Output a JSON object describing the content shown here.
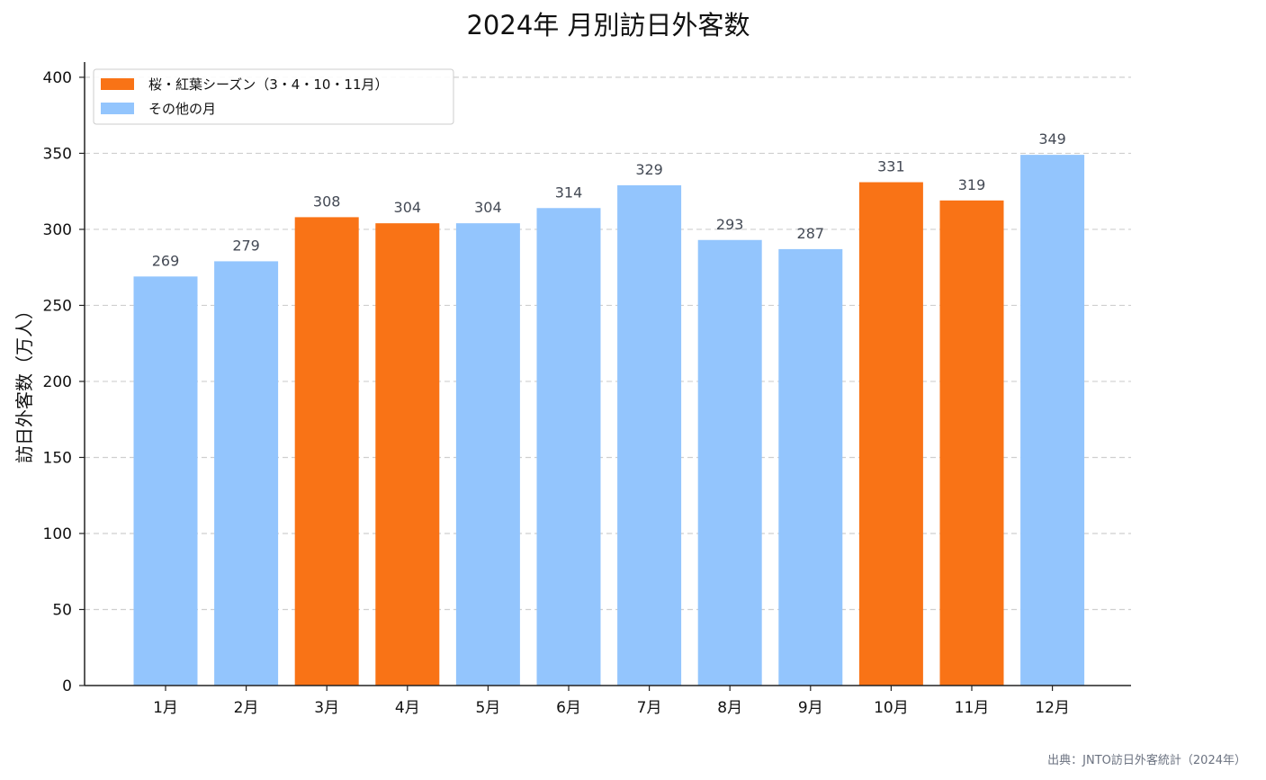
{
  "chart_data": {
    "type": "bar",
    "title": "2024年 月別訪日外客数",
    "ylabel": "訪日外客数（万人）",
    "xlabel": "",
    "ylim": [
      0,
      410
    ],
    "yticks": [
      0,
      50,
      100,
      150,
      200,
      250,
      300,
      350,
      400
    ],
    "grid": "horizontal-dashed",
    "categories": [
      "1月",
      "2月",
      "3月",
      "4月",
      "5月",
      "6月",
      "7月",
      "8月",
      "9月",
      "10月",
      "11月",
      "12月"
    ],
    "values": [
      269,
      279,
      308,
      304,
      304,
      314,
      329,
      293,
      287,
      331,
      319,
      349
    ],
    "groups": [
      "other",
      "other",
      "season",
      "season",
      "other",
      "other",
      "other",
      "other",
      "other",
      "season",
      "season",
      "other"
    ],
    "legend": {
      "placement": "top-left",
      "entries": [
        {
          "key": "season",
          "label": "桜・紅葉シーズン（3・4・10・11月）",
          "color": "#f97316"
        },
        {
          "key": "other",
          "label": "その他の月",
          "color": "#93c5fd"
        }
      ]
    },
    "source": "出典：JNTO訪日外客統計（2024年）"
  }
}
